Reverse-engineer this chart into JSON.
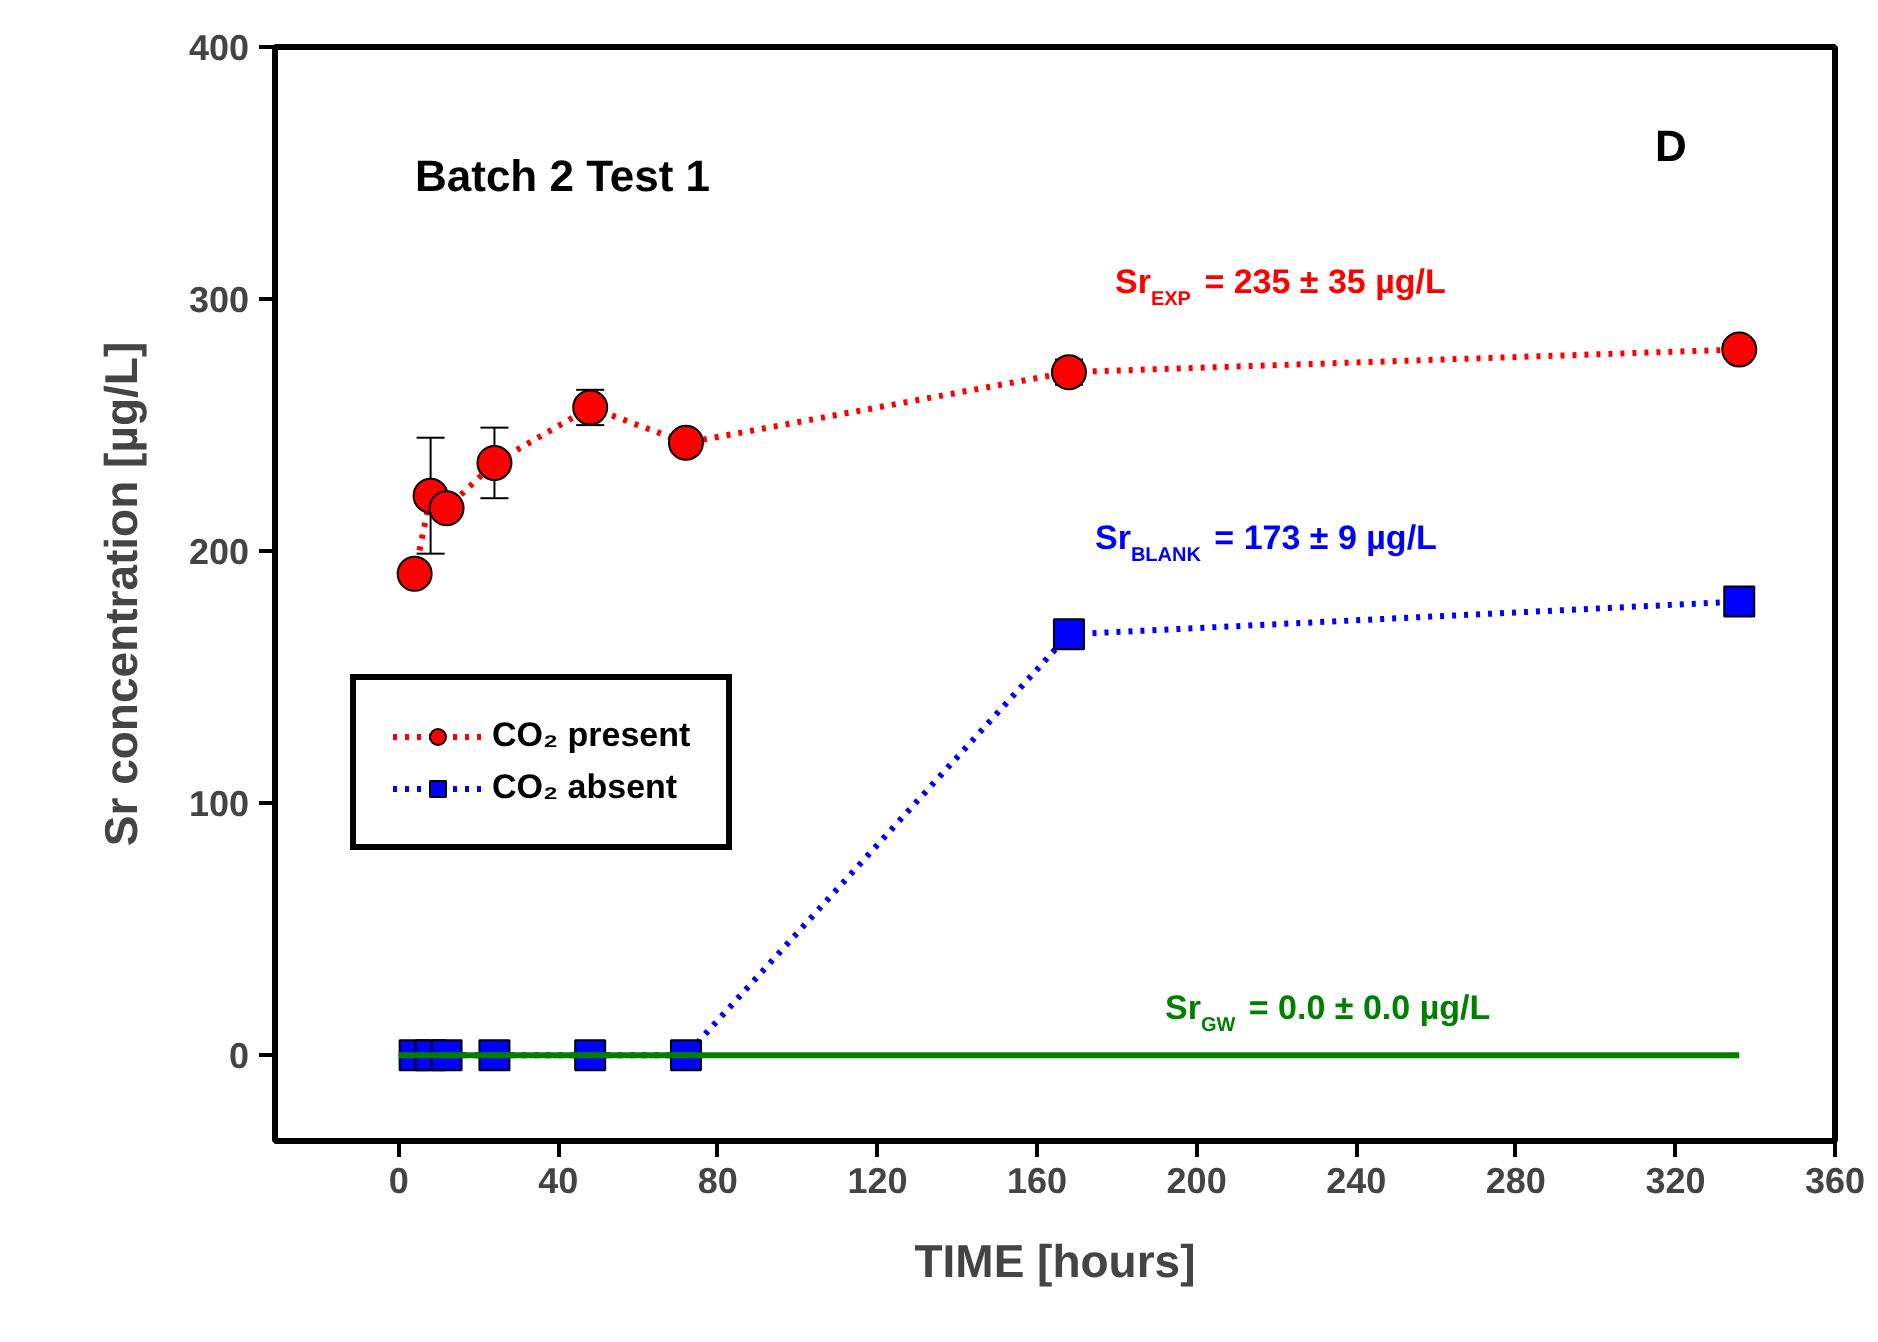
{
  "chart_data": {
    "type": "line",
    "xlabel": "TIME [hours]",
    "ylabel": "Sr concentration [µg/L]",
    "xlim": [
      -31,
      360
    ],
    "ylim": [
      -34,
      400
    ],
    "xticks": [
      0,
      40,
      80,
      120,
      160,
      200,
      240,
      280,
      320,
      360
    ],
    "yticks": [
      0,
      100,
      200,
      300,
      400
    ],
    "grid": false,
    "legend": "left",
    "series": [
      {
        "name": "CO₂ present",
        "color": "#ff0000",
        "marker": "circle",
        "line_style": "dotted",
        "x": [
          4,
          8,
          12,
          24,
          48,
          72,
          168,
          336
        ],
        "values": [
          191,
          222,
          217,
          235,
          257,
          243,
          271,
          280
        ],
        "errors": [
          null,
          23,
          null,
          14,
          7,
          null,
          5,
          null
        ]
      },
      {
        "name": "CO₂ absent",
        "color": "#0000ff",
        "marker": "square",
        "line_style": "dotted",
        "x": [
          4,
          8,
          12,
          24,
          48,
          72,
          168,
          336
        ],
        "values": [
          0,
          0,
          0,
          0,
          0,
          0,
          167,
          180
        ]
      },
      {
        "color": "#008000",
        "marker": "none",
        "line_style": "solid",
        "x": [
          0,
          336
        ],
        "values": [
          0,
          0
        ]
      }
    ],
    "annotations": [
      "Batch 2 Test 1",
      "D",
      "Sr$_{EXP}$ = 235 ± 35 µg/L",
      "Sr$_{BLANK}$ = 173 ± 9 µg/L",
      "Sr$_{GW}$ = 0.0 ± 0.0 µg/L"
    ]
  }
}
